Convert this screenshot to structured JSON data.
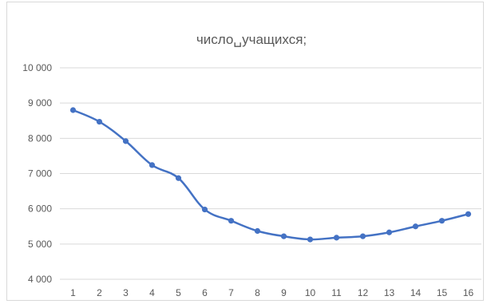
{
  "chart_data": {
    "type": "line",
    "title": "число␣учащихся;",
    "xlabel": "",
    "ylabel": "",
    "categories": [
      "1",
      "2",
      "3",
      "4",
      "5",
      "6",
      "7",
      "8",
      "9",
      "10",
      "11",
      "12",
      "13",
      "14",
      "15",
      "16"
    ],
    "series": [
      {
        "values": [
          8800,
          8470,
          7920,
          7240,
          6870,
          5980,
          5660,
          5370,
          5220,
          5130,
          5180,
          5220,
          5330,
          5500,
          5660,
          5850
        ],
        "color": "#4472c4"
      }
    ],
    "ylim": [
      4000,
      10000
    ],
    "yticks": [
      4000,
      5000,
      6000,
      7000,
      8000,
      9000,
      10000
    ],
    "ytick_labels": [
      "4 000",
      "5 000",
      "6 000",
      "7 000",
      "8 000",
      "9 000",
      "10 000"
    ],
    "grid": true,
    "markers": true,
    "smooth": true
  }
}
